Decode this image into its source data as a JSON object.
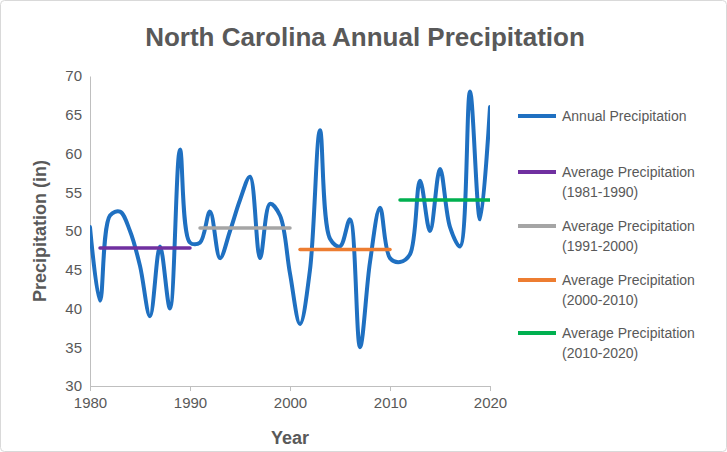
{
  "chart_data": {
    "type": "line",
    "title": "North Carolina Annual Precipitation",
    "x_label": "Year",
    "y_label": "Precipitation (in)",
    "x": [
      1980,
      1981,
      1982,
      1983,
      1984,
      1985,
      1986,
      1987,
      1988,
      1989,
      1990,
      1991,
      1992,
      1993,
      1994,
      1995,
      1996,
      1997,
      1998,
      1999,
      2000,
      2001,
      2002,
      2003,
      2004,
      2005,
      2006,
      2007,
      2008,
      2009,
      2010,
      2011,
      2012,
      2013,
      2014,
      2015,
      2016,
      2017,
      2018,
      2019,
      2020
    ],
    "series": [
      {
        "name": "Annual Precipitation",
        "color": "#1F70C1",
        "values": [
          50.5,
          41,
          52,
          52.5,
          50,
          45.5,
          39,
          48,
          40,
          60.5,
          48.5,
          48.5,
          52.5,
          46.5,
          50,
          54,
          57,
          46.5,
          53.5,
          52,
          44.5,
          38,
          45,
          63,
          49,
          48,
          51.5,
          35,
          46,
          53,
          46.5,
          46,
          47,
          56.5,
          50,
          58,
          50.5,
          48,
          68,
          51.5,
          66
        ]
      },
      {
        "name": "Average Precipitation (1981-1990)",
        "color": "#7030A0",
        "values": [
          null,
          47.8,
          47.8,
          47.8,
          47.8,
          47.8,
          47.8,
          47.8,
          47.8,
          47.8,
          47.8,
          null,
          null,
          null,
          null,
          null,
          null,
          null,
          null,
          null,
          null,
          null,
          null,
          null,
          null,
          null,
          null,
          null,
          null,
          null,
          null,
          null,
          null,
          null,
          null,
          null,
          null,
          null,
          null,
          null,
          null
        ]
      },
      {
        "name": "Average Precipitation (1991-2000)",
        "color": "#A5A5A5",
        "values": [
          null,
          null,
          null,
          null,
          null,
          null,
          null,
          null,
          null,
          null,
          null,
          50.4,
          50.4,
          50.4,
          50.4,
          50.4,
          50.4,
          50.4,
          50.4,
          50.4,
          50.4,
          null,
          null,
          null,
          null,
          null,
          null,
          null,
          null,
          null,
          null,
          null,
          null,
          null,
          null,
          null,
          null,
          null,
          null,
          null,
          null
        ]
      },
      {
        "name": "Average Precipitation (2000-2010)",
        "color": "#ED7D31",
        "values": [
          null,
          null,
          null,
          null,
          null,
          null,
          null,
          null,
          null,
          null,
          null,
          null,
          null,
          null,
          null,
          null,
          null,
          null,
          null,
          null,
          null,
          47.6,
          47.6,
          47.6,
          47.6,
          47.6,
          47.6,
          47.6,
          47.6,
          47.6,
          47.6,
          null,
          null,
          null,
          null,
          null,
          null,
          null,
          null,
          null,
          null
        ]
      },
      {
        "name": "Average Precipitation (2010-2020)",
        "color": "#00B050",
        "values": [
          null,
          null,
          null,
          null,
          null,
          null,
          null,
          null,
          null,
          null,
          null,
          null,
          null,
          null,
          null,
          null,
          null,
          null,
          null,
          null,
          null,
          null,
          null,
          null,
          null,
          null,
          null,
          null,
          null,
          null,
          null,
          54,
          54,
          54,
          54,
          54,
          54,
          54,
          54,
          54,
          54
        ]
      }
    ],
    "xlim": [
      1980,
      2020
    ],
    "xticks": [
      1980,
      1990,
      2000,
      2010,
      2020
    ],
    "ylim": [
      30,
      70
    ],
    "yticks": [
      30,
      35,
      40,
      45,
      50,
      55,
      60,
      65,
      70
    ],
    "grid": false,
    "legend": "right"
  }
}
